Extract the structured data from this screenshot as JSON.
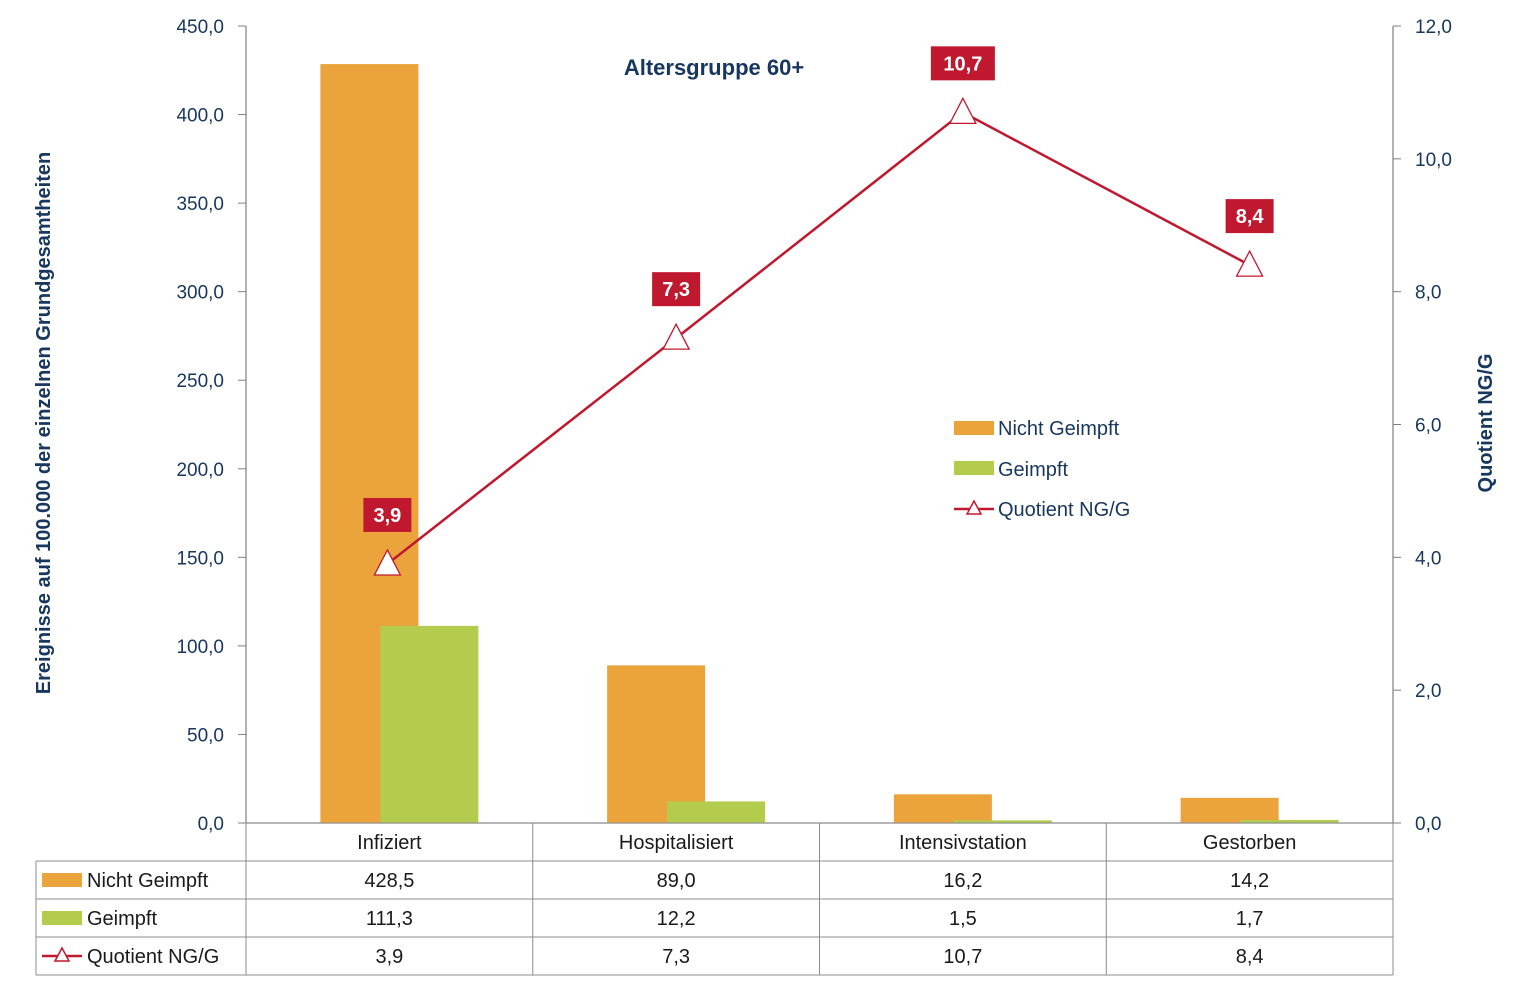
{
  "chart_data": {
    "type": "bar",
    "title": "Altersgruppe 60+",
    "categories": [
      "Infiziert",
      "Hospitalisiert",
      "Intensivstation",
      "Gestorben"
    ],
    "series": [
      {
        "name": "Nicht Geimpft",
        "type": "bar",
        "axis": "left",
        "color": "#eba43c",
        "values": [
          428.5,
          89.0,
          16.2,
          14.2
        ],
        "labels": [
          "428,5",
          "89,0",
          "16,2",
          "14,2"
        ]
      },
      {
        "name": "Geimpft",
        "type": "bar",
        "axis": "left",
        "color": "#b4cc4d",
        "values": [
          111.3,
          12.2,
          1.5,
          1.7
        ],
        "labels": [
          "111,3",
          "12,2",
          "1,5",
          "1,7"
        ]
      },
      {
        "name": "Quotient NG/G",
        "type": "line",
        "axis": "right",
        "color": "#c0192f",
        "values": [
          3.9,
          7.3,
          10.7,
          8.4
        ],
        "labels": [
          "3,9",
          "7,3",
          "10,7",
          "8,4"
        ]
      }
    ],
    "y_left": {
      "label": "Ereignisse auf 100.000 der einzelnen Grundgesamtheiten",
      "range": [
        0,
        450
      ],
      "ticks": [
        "0,0",
        "50,0",
        "100,0",
        "150,0",
        "200,0",
        "250,0",
        "300,0",
        "350,0",
        "400,0",
        "450,0"
      ]
    },
    "y_right": {
      "label": "Quotient NG/G",
      "range": [
        0,
        12
      ],
      "ticks": [
        "0,0",
        "2,0",
        "4,0",
        "6,0",
        "8,0",
        "10,0",
        "12,0"
      ]
    },
    "legend_position": "center-right",
    "grid": false,
    "data_table": true
  }
}
